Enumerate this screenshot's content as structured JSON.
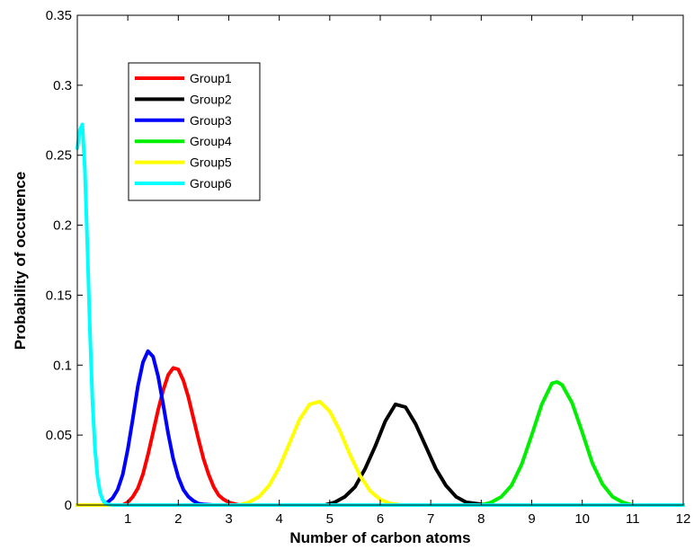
{
  "chart_data": {
    "type": "line",
    "xlabel": "Number of carbon atoms",
    "ylabel": "Probability of occurence",
    "xlim": [
      0,
      12
    ],
    "ylim": [
      0,
      0.35
    ],
    "xticks": [
      "1",
      "2",
      "3",
      "4",
      "5",
      "6",
      "7",
      "8",
      "9",
      "10",
      "11",
      "12"
    ],
    "yticks": [
      "0",
      "0.05",
      "0.1",
      "0.15",
      "0.2",
      "0.25",
      "0.3",
      "0.35"
    ],
    "grid": false,
    "legend_position": "top-left",
    "series": [
      {
        "name": "Group1",
        "color": "#ff0000",
        "x": [
          0,
          0.9,
          1.0,
          1.1,
          1.2,
          1.3,
          1.4,
          1.5,
          1.6,
          1.7,
          1.8,
          1.9,
          2.0,
          2.1,
          2.2,
          2.3,
          2.4,
          2.5,
          2.6,
          2.7,
          2.8,
          2.9,
          3.0,
          3.2,
          12
        ],
        "y": [
          0,
          0,
          0.002,
          0.006,
          0.012,
          0.022,
          0.036,
          0.052,
          0.068,
          0.082,
          0.093,
          0.098,
          0.097,
          0.089,
          0.077,
          0.062,
          0.047,
          0.033,
          0.022,
          0.013,
          0.007,
          0.004,
          0.002,
          0,
          0
        ]
      },
      {
        "name": "Group2",
        "color": "#000000",
        "x": [
          0,
          4.9,
          5.1,
          5.3,
          5.5,
          5.7,
          5.9,
          6.1,
          6.3,
          6.5,
          6.7,
          6.9,
          7.1,
          7.3,
          7.5,
          7.7,
          7.9,
          8.1,
          12
        ],
        "y": [
          0,
          0,
          0.002,
          0.006,
          0.013,
          0.026,
          0.042,
          0.06,
          0.072,
          0.07,
          0.058,
          0.042,
          0.026,
          0.014,
          0.006,
          0.002,
          0.001,
          0,
          0
        ]
      },
      {
        "name": "Group3",
        "color": "#0000ff",
        "x": [
          0,
          0.5,
          0.6,
          0.7,
          0.8,
          0.9,
          1.0,
          1.1,
          1.2,
          1.3,
          1.4,
          1.5,
          1.6,
          1.7,
          1.8,
          1.9,
          2.0,
          2.1,
          2.2,
          2.3,
          2.4,
          2.5,
          2.7,
          12
        ],
        "y": [
          0,
          0,
          0.002,
          0.005,
          0.011,
          0.022,
          0.04,
          0.062,
          0.085,
          0.102,
          0.11,
          0.106,
          0.092,
          0.072,
          0.051,
          0.033,
          0.02,
          0.011,
          0.006,
          0.003,
          0.001,
          0.0005,
          0,
          0
        ]
      },
      {
        "name": "Group4",
        "color": "#00ee00",
        "x": [
          0,
          8.0,
          8.2,
          8.4,
          8.6,
          8.8,
          9.0,
          9.2,
          9.4,
          9.5,
          9.6,
          9.8,
          10.0,
          10.2,
          10.4,
          10.6,
          10.8,
          11.0,
          12
        ],
        "y": [
          0,
          0,
          0.002,
          0.006,
          0.014,
          0.029,
          0.05,
          0.072,
          0.087,
          0.088,
          0.086,
          0.073,
          0.052,
          0.03,
          0.015,
          0.006,
          0.002,
          0,
          0
        ]
      },
      {
        "name": "Group5",
        "color": "#ffff00",
        "x": [
          0,
          3.2,
          3.4,
          3.6,
          3.8,
          4.0,
          4.2,
          4.4,
          4.6,
          4.8,
          5.0,
          5.2,
          5.4,
          5.6,
          5.8,
          6.0,
          6.2,
          6.4,
          12
        ],
        "y": [
          0,
          0,
          0.002,
          0.006,
          0.014,
          0.027,
          0.044,
          0.061,
          0.072,
          0.074,
          0.067,
          0.053,
          0.036,
          0.021,
          0.01,
          0.004,
          0.001,
          0,
          0
        ]
      },
      {
        "name": "Group6",
        "color": "#00ffff",
        "x": [
          0.0,
          0.05,
          0.1,
          0.15,
          0.2,
          0.25,
          0.3,
          0.35,
          0.4,
          0.45,
          0.5,
          0.55,
          0.6,
          0.7,
          0.8,
          12
        ],
        "y": [
          0.255,
          0.268,
          0.272,
          0.24,
          0.185,
          0.125,
          0.075,
          0.04,
          0.02,
          0.009,
          0.004,
          0.0015,
          0.0005,
          0,
          0,
          0
        ]
      }
    ]
  }
}
